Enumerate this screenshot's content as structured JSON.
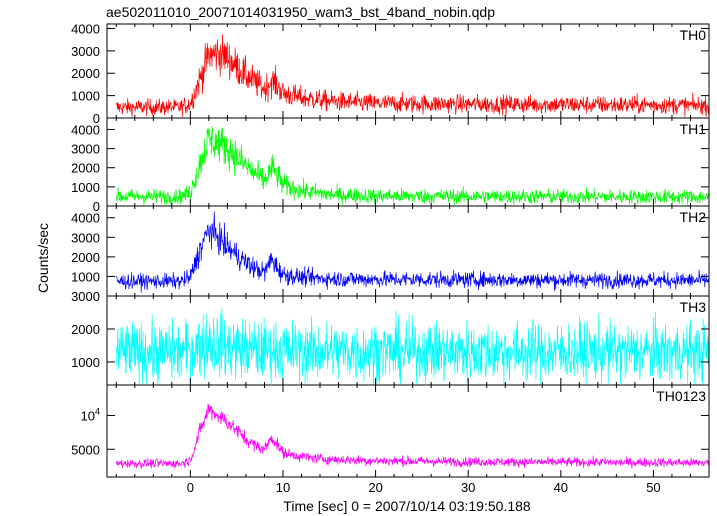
{
  "title": "ae502011010_20071014031950_wam3_bst_4band_nobin.qdp",
  "xlabel": "Time [sec] 0 = 2007/10/14 03:19:50.188",
  "ylabel": "Counts/sec",
  "chart_data": [
    {
      "type": "line",
      "name": "TH0",
      "color": "#ff0000",
      "x_range": [
        -9,
        56
      ],
      "ylim": [
        0,
        4200
      ],
      "y_ticks": [
        0,
        1000,
        2000,
        3000,
        4000
      ],
      "y_tick_labels": [
        "0",
        "1000",
        "2000",
        "3000",
        "4000"
      ],
      "profile_x": [
        -8,
        -1,
        0,
        1,
        2,
        3,
        4,
        5,
        6,
        7,
        8,
        8.8,
        9.3,
        10,
        12,
        15,
        20,
        30,
        40,
        50,
        56
      ],
      "profile_y": [
        480,
        480,
        650,
        1700,
        2800,
        2900,
        2700,
        2300,
        1900,
        1600,
        1300,
        1650,
        1500,
        1100,
        900,
        750,
        650,
        620,
        600,
        580,
        560
      ],
      "noise": 260
    },
    {
      "type": "line",
      "name": "TH1",
      "color": "#00ff00",
      "x_range": [
        -9,
        56
      ],
      "ylim": [
        0,
        4600
      ],
      "y_ticks": [
        0,
        1000,
        2000,
        3000,
        4000
      ],
      "y_tick_labels": [
        "0",
        "1000",
        "2000",
        "3000",
        "4000"
      ],
      "profile_x": [
        -8,
        -1,
        0,
        1,
        2,
        3,
        4,
        5,
        6,
        7,
        8,
        8.8,
        9.3,
        10,
        12,
        15,
        20,
        30,
        40,
        50,
        56
      ],
      "profile_y": [
        500,
        500,
        700,
        2200,
        3500,
        3300,
        3000,
        2600,
        2100,
        1700,
        1300,
        2000,
        1700,
        1100,
        800,
        600,
        520,
        500,
        490,
        480,
        470
      ],
      "noise": 280
    },
    {
      "type": "line",
      "name": "TH2",
      "color": "#0000ff",
      "x_range": [
        -9,
        56
      ],
      "ylim": [
        0,
        4600
      ],
      "y_ticks": [
        0,
        1000,
        2000,
        3000,
        4000
      ],
      "y_tick_labels": [
        "",
        "1000",
        "2000",
        "3000",
        "4000"
      ],
      "profile_x": [
        -8,
        -1,
        0,
        1,
        2,
        3,
        4,
        5,
        6,
        7,
        8,
        8.8,
        9.3,
        10,
        12,
        15,
        20,
        30,
        40,
        50,
        56
      ],
      "profile_y": [
        750,
        750,
        950,
        2300,
        3400,
        3000,
        2500,
        2100,
        1700,
        1400,
        1200,
        1900,
        1500,
        1100,
        950,
        880,
        850,
        830,
        820,
        810,
        800
      ],
      "noise": 280
    },
    {
      "type": "line",
      "name": "TH3",
      "color": "#00ffff",
      "x_range": [
        -9,
        56
      ],
      "ylim": [
        300,
        3000
      ],
      "y_ticks": [
        1000,
        2000,
        3000
      ],
      "y_tick_labels": [
        "1000",
        "2000",
        "3000"
      ],
      "profile_x": [
        -8,
        -1,
        0,
        1,
        2,
        3,
        4,
        6,
        10,
        20,
        30,
        40,
        50,
        56
      ],
      "profile_y": [
        1300,
        1300,
        1350,
        1500,
        1650,
        1550,
        1450,
        1380,
        1330,
        1320,
        1310,
        1300,
        1300,
        1300
      ],
      "noise": 650
    },
    {
      "type": "line",
      "name": "TH0123",
      "color": "#ff00ff",
      "x_range": [
        -9,
        56
      ],
      "ylim": [
        900,
        14500
      ],
      "y_ticks": [
        5000,
        10000
      ],
      "y_tick_labels": [
        "5000",
        "10^4"
      ],
      "profile_x": [
        -8,
        -1,
        0,
        1,
        2,
        3,
        4,
        5,
        6,
        7,
        8,
        8.8,
        9.3,
        10,
        12,
        15,
        20,
        30,
        40,
        50,
        56
      ],
      "profile_y": [
        2900,
        2900,
        3400,
        7500,
        11000,
        10000,
        9000,
        7800,
        6500,
        5600,
        5000,
        6800,
        5800,
        4500,
        3900,
        3500,
        3300,
        3150,
        3100,
        3050,
        3000
      ],
      "noise": 480
    }
  ],
  "x_axis": {
    "ticks": [
      0,
      10,
      20,
      30,
      40,
      50
    ],
    "tick_labels": [
      "0",
      "10",
      "20",
      "30",
      "40",
      "50"
    ],
    "minor_step": 2
  }
}
